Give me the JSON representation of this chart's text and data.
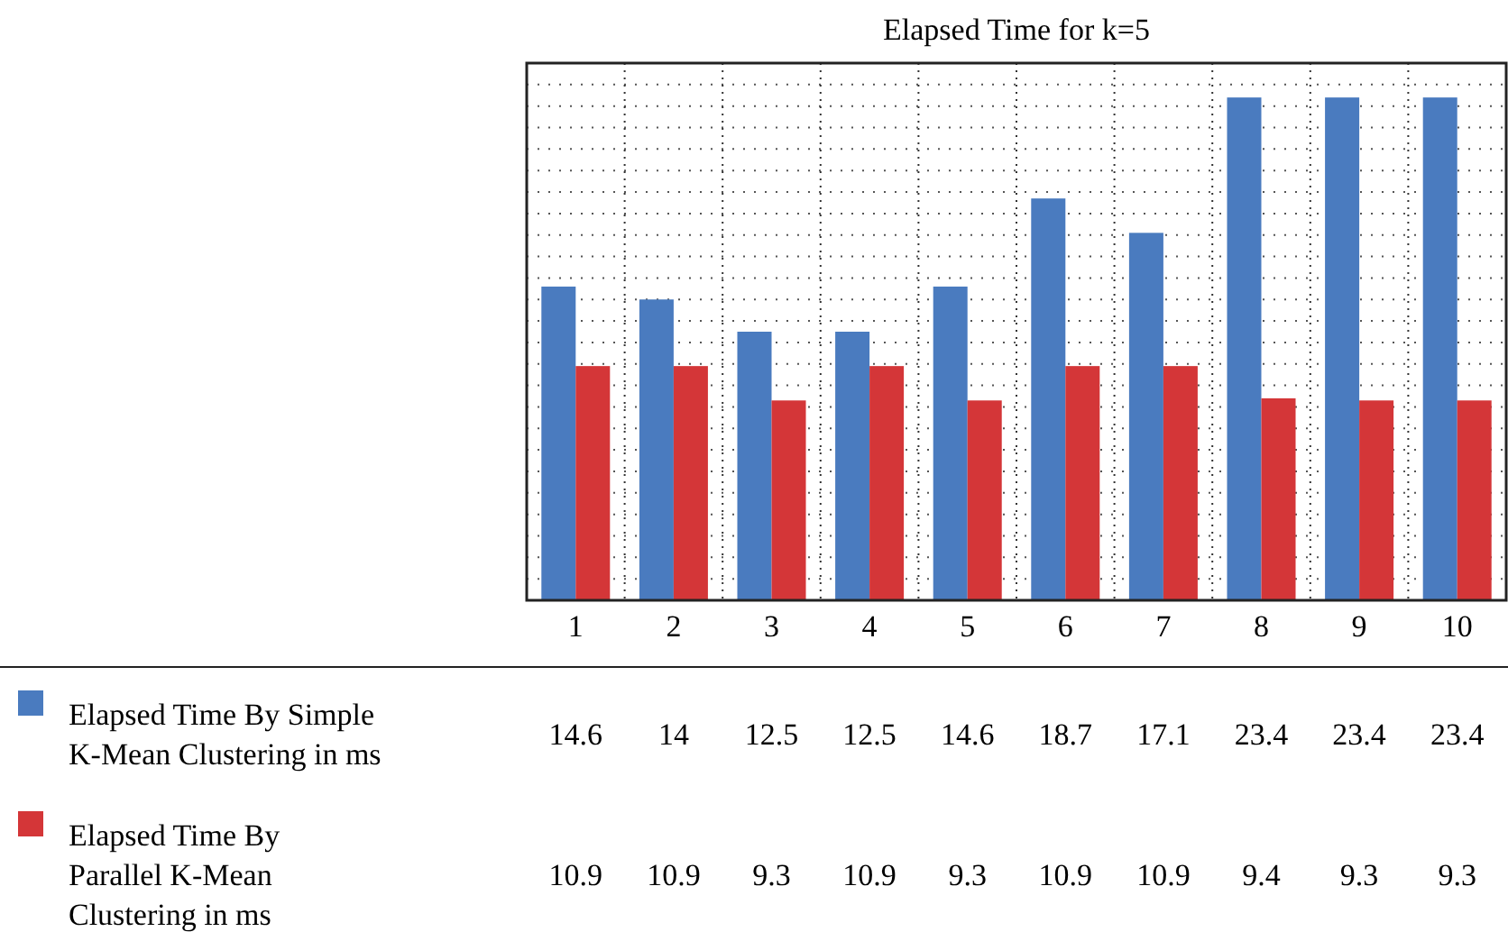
{
  "chart_data": {
    "type": "bar",
    "title": "Elapsed Time for k=5",
    "categories": [
      "1",
      "2",
      "3",
      "4",
      "5",
      "6",
      "7",
      "8",
      "9",
      "10"
    ],
    "series": [
      {
        "name": "Elapsed Time By Simple K-Mean Clustering in ms",
        "color": "#4a7bbf",
        "values": [
          14.6,
          14,
          12.5,
          12.5,
          14.6,
          18.7,
          17.1,
          23.4,
          23.4,
          23.4
        ]
      },
      {
        "name": "Elapsed Time By Parallel K-Mean Clustering in ms",
        "color": "#d43638",
        "values": [
          10.9,
          10.9,
          9.3,
          10.9,
          9.3,
          10.9,
          10.9,
          9.4,
          9.3,
          9.3
        ]
      }
    ],
    "ylim": [
      0,
      25
    ],
    "yticks": [
      {
        "value": 0,
        "label": null
      },
      {
        "value": 1,
        "label": null
      },
      {
        "value": 2,
        "label": null
      },
      {
        "value": 3,
        "label": null
      },
      {
        "value": 4,
        "label": null
      },
      {
        "value": 5,
        "label": null
      },
      {
        "value": 6,
        "label": null
      },
      {
        "value": 7,
        "label": null
      },
      {
        "value": 8,
        "label": null
      },
      {
        "value": 9,
        "label": null
      },
      {
        "value": 10,
        "label": null
      },
      {
        "value": 11,
        "label": null
      },
      {
        "value": 12,
        "label": null
      },
      {
        "value": 13,
        "label": null
      },
      {
        "value": 14,
        "label": null
      },
      {
        "value": 15,
        "label": null
      },
      {
        "value": 16,
        "label": null
      },
      {
        "value": 17,
        "label": null
      },
      {
        "value": 18,
        "label": null
      },
      {
        "value": 19,
        "label": null
      },
      {
        "value": 20,
        "label": null
      },
      {
        "value": 21,
        "label": null
      },
      {
        "value": 22,
        "label": null
      },
      {
        "value": 23,
        "label": null
      },
      {
        "value": 24,
        "label": null
      },
      {
        "value": 25,
        "label": null
      }
    ],
    "tick_labels": "x",
    "grid": true,
    "legend": "bottom",
    "data_labels": true
  }
}
